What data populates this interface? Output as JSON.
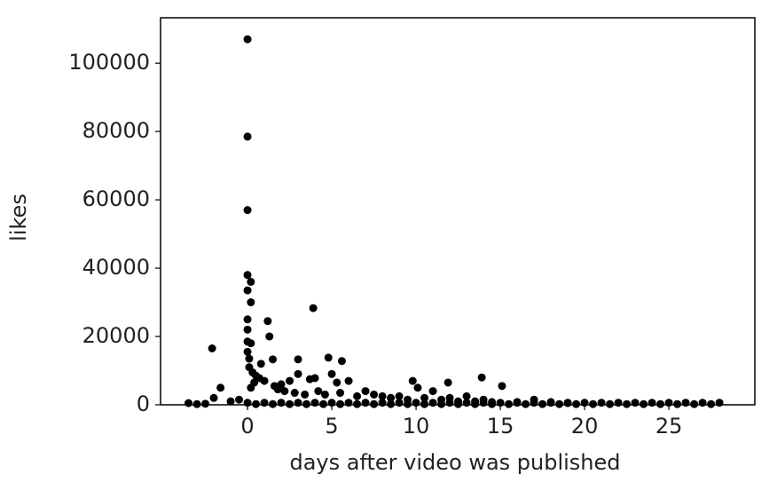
{
  "chart_data": {
    "type": "scatter",
    "xlabel": "days after video was published",
    "ylabel": "likes",
    "color": "#000000",
    "x": [
      0,
      0,
      0,
      0,
      0.2,
      0,
      0.2,
      0,
      1.2,
      0,
      1.3,
      0,
      0.2,
      -2.1,
      0,
      0.1,
      1.5,
      3.9,
      4.8,
      5.6,
      3,
      0.8,
      -1.6,
      -2,
      -3.5,
      13.9,
      15.1,
      11.9,
      9.8,
      10.1,
      11,
      3.7,
      4,
      5,
      6,
      5.3,
      2.5,
      2,
      3,
      0.1,
      0.3,
      0.5,
      0.7,
      1,
      0.4,
      1.6,
      0.2,
      1.8,
      2.2,
      2.8,
      3.4,
      4.2,
      4.6,
      5.5,
      6.5,
      7,
      7.5,
      8,
      8.5,
      9,
      9.5,
      10.5,
      11.5,
      12,
      12.5,
      13,
      13.5,
      14,
      14.5,
      16,
      17,
      18,
      19,
      -1,
      -0.5,
      -3,
      -2.5,
      0,
      0.5,
      1,
      1.5,
      2,
      2.5,
      3,
      3.5,
      4,
      4.5,
      5,
      5.5,
      6,
      6.5,
      7,
      7.5,
      8,
      8.5,
      9,
      9.5,
      10,
      10.5,
      11,
      11.5,
      12,
      12.5,
      13,
      13.5,
      14,
      14.5,
      15,
      15.5,
      16,
      16.5,
      17,
      17.5,
      18,
      18.5,
      19,
      19.5,
      20,
      20.5,
      21,
      21.5,
      22,
      22.5,
      23,
      23.5,
      24,
      24.5,
      25,
      25.5,
      26,
      26.5,
      27,
      27.5,
      28
    ],
    "values": [
      107000,
      78500,
      57000,
      38000,
      36000,
      33500,
      30000,
      25000,
      24500,
      22000,
      20000,
      18500,
      18000,
      16500,
      15500,
      13500,
      13300,
      28300,
      13800,
      12800,
      13300,
      12000,
      5000,
      2000,
      500,
      8000,
      5500,
      6500,
      7000,
      5000,
      4000,
      7500,
      7800,
      9000,
      7000,
      6500,
      7000,
      6000,
      9000,
      11000,
      9500,
      8500,
      7800,
      7000,
      6500,
      5500,
      5000,
      4500,
      4000,
      3500,
      3000,
      4000,
      3000,
      3500,
      2500,
      4000,
      3000,
      2500,
      2000,
      2500,
      1500,
      2000,
      1500,
      2000,
      1000,
      2500,
      1000,
      1500,
      800,
      800,
      1500,
      800,
      500,
      1000,
      1500,
      200,
      300,
      600,
      200,
      600,
      200,
      600,
      200,
      600,
      200,
      600,
      200,
      600,
      200,
      600,
      200,
      600,
      200,
      600,
      200,
      600,
      200,
      600,
      200,
      600,
      200,
      600,
      200,
      600,
      200,
      600,
      200,
      600,
      200,
      600,
      200,
      600,
      200,
      600,
      200,
      600,
      200,
      600,
      200,
      600,
      200,
      600,
      200,
      600,
      200,
      600,
      200,
      600,
      200,
      600,
      200,
      600,
      200,
      600
    ],
    "xlim": [
      -5.16,
      30.1
    ],
    "ylim": [
      0,
      113300
    ],
    "xticks": [
      0,
      5,
      10,
      15,
      20,
      25
    ],
    "yticks": [
      0,
      20000,
      40000,
      60000,
      80000,
      100000
    ]
  }
}
